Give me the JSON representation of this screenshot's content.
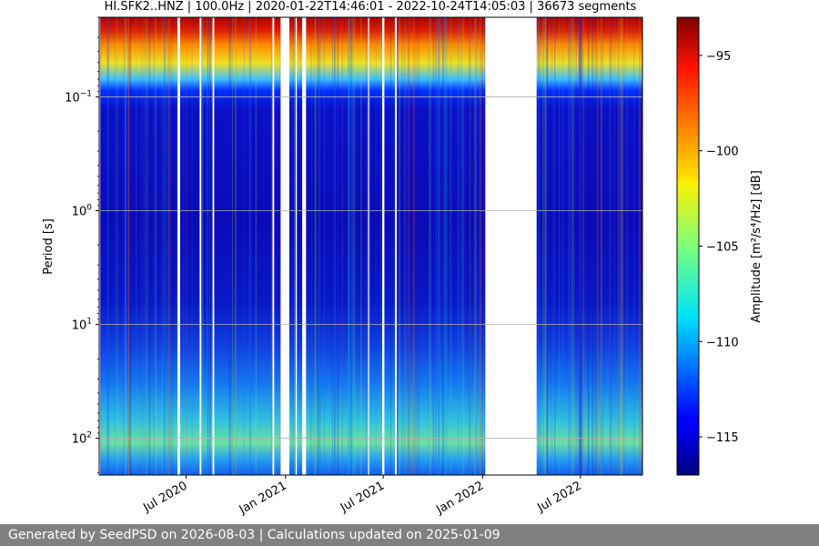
{
  "chart_data": {
    "type": "heatmap",
    "title": "HI.SFK2..HNZ | 100.0Hz | 2020-01-22T14:46:01 - 2022-10-24T14:05:03 | 36673 segments",
    "ylabel": "Period [s]",
    "y_scale": "log",
    "y_invert": true,
    "ylim": [
      0.02,
      210
    ],
    "y_ticks": [
      {
        "value": 0.1,
        "base": "10",
        "exp": "−1"
      },
      {
        "value": 1,
        "base": "10",
        "exp": "0"
      },
      {
        "value": 10,
        "base": "10",
        "exp": "1"
      },
      {
        "value": 100,
        "base": "10",
        "exp": "2"
      }
    ],
    "xlim": [
      "2020-01-22",
      "2022-10-24"
    ],
    "x_ticks": [
      {
        "date": "2020-07-01",
        "label": "Jul 2020"
      },
      {
        "date": "2021-01-01",
        "label": "Jan 2021"
      },
      {
        "date": "2021-07-01",
        "label": "Jul 2021"
      },
      {
        "date": "2022-01-01",
        "label": "Jan 2022"
      },
      {
        "date": "2022-07-01",
        "label": "Jul 2022"
      }
    ],
    "data_gaps": [
      [
        "2020-01-22",
        "2020-01-24"
      ],
      [
        "2020-06-15",
        "2020-06-20"
      ],
      [
        "2020-07-26",
        "2020-07-29"
      ],
      [
        "2020-08-19",
        "2020-08-22"
      ],
      [
        "2020-12-08",
        "2020-12-11"
      ],
      [
        "2020-12-23",
        "2021-01-08"
      ],
      [
        "2021-01-20",
        "2021-01-22"
      ],
      [
        "2021-02-01",
        "2021-02-08"
      ],
      [
        "2021-06-03",
        "2021-06-05"
      ],
      [
        "2021-06-29",
        "2021-07-03"
      ],
      [
        "2021-07-23",
        "2021-07-26"
      ],
      [
        "2022-01-06",
        "2022-04-11"
      ]
    ],
    "colorbar": {
      "label": "Amplitude",
      "unit_label": "[m²/s⁴/Hz] [dB]",
      "colormap": "jet",
      "range": [
        -117,
        -93
      ],
      "ticks": [
        -95,
        -100,
        -105,
        -110,
        -115
      ]
    },
    "grid": true
  },
  "footer": {
    "text": "Generated by SeedPSD on 2026-08-03 | Calculations updated on 2025-01-09"
  }
}
